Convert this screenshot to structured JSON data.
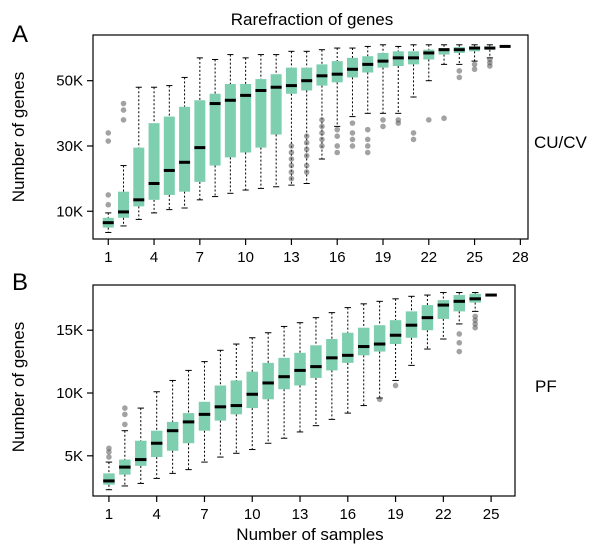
{
  "chart_data": [
    {
      "type": "boxplot",
      "panel_letter": "A",
      "title": "Rarefraction of genes",
      "group_label": "CU/CV",
      "xlabel": "",
      "ylabel": "Number of genes",
      "xlim": [
        0,
        28.5
      ],
      "ylim": [
        1500,
        64000
      ],
      "xticks": [
        1,
        4,
        7,
        10,
        13,
        16,
        19,
        22,
        25,
        28
      ],
      "yticks": [
        10000,
        30000,
        50000
      ],
      "yticklabels": [
        "10K",
        "30K",
        "50K"
      ],
      "grid": false,
      "boxes": [
        {
          "x": 1,
          "lo": 3500,
          "q1": 5000,
          "med": 6500,
          "q3": 8000,
          "hi": 9500,
          "outliers": [
            12000,
            15000,
            31500,
            34000
          ]
        },
        {
          "x": 2,
          "lo": 5500,
          "q1": 8000,
          "med": 9800,
          "q3": 16000,
          "hi": 24000,
          "outliers": [
            38000,
            41000,
            43000
          ]
        },
        {
          "x": 3,
          "lo": 7500,
          "q1": 11500,
          "med": 13500,
          "q3": 29500,
          "hi": 48000,
          "outliers": []
        },
        {
          "x": 4,
          "lo": 9500,
          "q1": 13500,
          "med": 18500,
          "q3": 37000,
          "hi": 48000,
          "outliers": []
        },
        {
          "x": 5,
          "lo": 10500,
          "q1": 15000,
          "med": 22500,
          "q3": 39000,
          "hi": 48500,
          "outliers": []
        },
        {
          "x": 6,
          "lo": 11000,
          "q1": 16000,
          "med": 25000,
          "q3": 42000,
          "hi": 51000,
          "outliers": []
        },
        {
          "x": 7,
          "lo": 13500,
          "q1": 19000,
          "med": 29500,
          "q3": 44000,
          "hi": 57000,
          "outliers": []
        },
        {
          "x": 8,
          "lo": 14500,
          "q1": 24000,
          "med": 43000,
          "q3": 46000,
          "hi": 56500,
          "outliers": []
        },
        {
          "x": 9,
          "lo": 15500,
          "q1": 26500,
          "med": 44000,
          "q3": 49000,
          "hi": 58000,
          "outliers": []
        },
        {
          "x": 10,
          "lo": 16500,
          "q1": 28000,
          "med": 45500,
          "q3": 49000,
          "hi": 57000,
          "outliers": []
        },
        {
          "x": 11,
          "lo": 17000,
          "q1": 29500,
          "med": 47000,
          "q3": 50500,
          "hi": 58000,
          "outliers": []
        },
        {
          "x": 12,
          "lo": 17500,
          "q1": 33500,
          "med": 48000,
          "q3": 52000,
          "hi": 58000,
          "outliers": []
        },
        {
          "x": 13,
          "lo": 18000,
          "q1": 46000,
          "med": 48500,
          "q3": 54000,
          "hi": 59000,
          "outliers": [
            20000,
            22000,
            24000,
            26000,
            28000,
            30000
          ]
        },
        {
          "x": 14,
          "lo": 18500,
          "q1": 47000,
          "med": 50000,
          "q3": 54000,
          "hi": 59000,
          "outliers": [
            22000,
            24000,
            27000,
            29000,
            31000,
            33000
          ]
        },
        {
          "x": 15,
          "lo": 26000,
          "q1": 48500,
          "med": 51500,
          "q3": 55000,
          "hi": 59500,
          "outliers": [
            30000,
            32000,
            34000,
            36000,
            38000
          ]
        },
        {
          "x": 16,
          "lo": 36000,
          "q1": 49500,
          "med": 52000,
          "q3": 56000,
          "hi": 60000,
          "outliers": [
            28000,
            30000,
            33000,
            35000
          ]
        },
        {
          "x": 17,
          "lo": 39000,
          "q1": 51000,
          "med": 53500,
          "q3": 57000,
          "hi": 60000,
          "outliers": [
            30000,
            32000,
            34000,
            37000
          ]
        },
        {
          "x": 18,
          "lo": 40000,
          "q1": 52500,
          "med": 55000,
          "q3": 57500,
          "hi": 60500,
          "outliers": [
            28000,
            30000,
            32000,
            35000
          ]
        },
        {
          "x": 19,
          "lo": 40000,
          "q1": 54000,
          "med": 56000,
          "q3": 58500,
          "hi": 61000,
          "outliers": [
            36000,
            38000
          ]
        },
        {
          "x": 20,
          "lo": 40000,
          "q1": 54500,
          "med": 57000,
          "q3": 59000,
          "hi": 60500,
          "outliers": [
            37000,
            38000
          ]
        },
        {
          "x": 21,
          "lo": 45000,
          "q1": 55000,
          "med": 57000,
          "q3": 59000,
          "hi": 61000,
          "outliers": [
            32000,
            34000
          ]
        },
        {
          "x": 22,
          "lo": 50000,
          "q1": 56500,
          "med": 58500,
          "q3": 59500,
          "hi": 61000,
          "outliers": [
            38000
          ]
        },
        {
          "x": 23,
          "lo": 55000,
          "q1": 58000,
          "med": 59500,
          "q3": 60000,
          "hi": 61000,
          "outliers": [
            38500
          ]
        },
        {
          "x": 24,
          "lo": 55000,
          "q1": 58500,
          "med": 59500,
          "q3": 60300,
          "hi": 61000,
          "outliers": [
            51000,
            53000
          ]
        },
        {
          "x": 25,
          "lo": 56000,
          "q1": 59000,
          "med": 60000,
          "q3": 60500,
          "hi": 61000,
          "outliers": [
            53500,
            55000
          ]
        },
        {
          "x": 26,
          "lo": 57000,
          "q1": 59500,
          "med": 60000,
          "q3": 60500,
          "hi": 61000,
          "outliers": [
            54500,
            55500,
            56500
          ]
        },
        {
          "x": 27,
          "lo": 60500,
          "q1": 60500,
          "med": 60500,
          "q3": 60500,
          "hi": 60500,
          "outliers": []
        }
      ]
    },
    {
      "type": "boxplot",
      "panel_letter": "B",
      "title": "",
      "group_label": "PF",
      "xlabel": "Number of samples",
      "ylabel": "Number of genes",
      "xlim": [
        0,
        26.5
      ],
      "ylim": [
        1800,
        18600
      ],
      "xticks": [
        1,
        4,
        7,
        10,
        13,
        16,
        19,
        22,
        25
      ],
      "yticks": [
        5000,
        10000,
        15000
      ],
      "yticklabels": [
        "5K",
        "10K",
        "15K"
      ],
      "grid": false,
      "boxes": [
        {
          "x": 1,
          "lo": 2300,
          "q1": 2700,
          "med": 3000,
          "q3": 3600,
          "hi": 4500,
          "outliers": [
            4900,
            5300,
            5600
          ]
        },
        {
          "x": 2,
          "lo": 2600,
          "q1": 3500,
          "med": 4100,
          "q3": 4700,
          "hi": 7000,
          "outliers": [
            7500,
            8300,
            8800
          ]
        },
        {
          "x": 3,
          "lo": 2800,
          "q1": 4200,
          "med": 4700,
          "q3": 6200,
          "hi": 8800,
          "outliers": []
        },
        {
          "x": 4,
          "lo": 3200,
          "q1": 4900,
          "med": 6000,
          "q3": 7000,
          "hi": 10100,
          "outliers": []
        },
        {
          "x": 5,
          "lo": 3600,
          "q1": 5400,
          "med": 7000,
          "q3": 7700,
          "hi": 11000,
          "outliers": []
        },
        {
          "x": 6,
          "lo": 3900,
          "q1": 6000,
          "med": 7700,
          "q3": 8400,
          "hi": 11800,
          "outliers": []
        },
        {
          "x": 7,
          "lo": 4500,
          "q1": 7000,
          "med": 8300,
          "q3": 9300,
          "hi": 12500,
          "outliers": []
        },
        {
          "x": 8,
          "lo": 4900,
          "q1": 7800,
          "med": 8900,
          "q3": 10600,
          "hi": 13400,
          "outliers": []
        },
        {
          "x": 9,
          "lo": 5200,
          "q1": 8300,
          "med": 9000,
          "q3": 11000,
          "hi": 13900,
          "outliers": []
        },
        {
          "x": 10,
          "lo": 5500,
          "q1": 8800,
          "med": 9900,
          "q3": 11700,
          "hi": 14400,
          "outliers": []
        },
        {
          "x": 11,
          "lo": 6000,
          "q1": 9500,
          "med": 10800,
          "q3": 12400,
          "hi": 14800,
          "outliers": []
        },
        {
          "x": 12,
          "lo": 6400,
          "q1": 10300,
          "med": 11300,
          "q3": 12800,
          "hi": 15300,
          "outliers": []
        },
        {
          "x": 13,
          "lo": 6900,
          "q1": 10600,
          "med": 11800,
          "q3": 13200,
          "hi": 15600,
          "outliers": []
        },
        {
          "x": 14,
          "lo": 7400,
          "q1": 11200,
          "med": 12100,
          "q3": 13800,
          "hi": 16000,
          "outliers": []
        },
        {
          "x": 15,
          "lo": 7900,
          "q1": 11800,
          "med": 12800,
          "q3": 14300,
          "hi": 16400,
          "outliers": []
        },
        {
          "x": 16,
          "lo": 8400,
          "q1": 12400,
          "med": 13000,
          "q3": 14800,
          "hi": 16800,
          "outliers": []
        },
        {
          "x": 17,
          "lo": 9000,
          "q1": 13000,
          "med": 13700,
          "q3": 15200,
          "hi": 17100,
          "outliers": []
        },
        {
          "x": 18,
          "lo": 9600,
          "q1": 13300,
          "med": 13900,
          "q3": 15400,
          "hi": 17300,
          "outliers": [
            9500
          ]
        },
        {
          "x": 19,
          "lo": 11000,
          "q1": 13900,
          "med": 14600,
          "q3": 15800,
          "hi": 17500,
          "outliers": [
            10600
          ]
        },
        {
          "x": 20,
          "lo": 12200,
          "q1": 14400,
          "med": 15400,
          "q3": 16500,
          "hi": 17700,
          "outliers": []
        },
        {
          "x": 21,
          "lo": 13500,
          "q1": 15000,
          "med": 16000,
          "q3": 17000,
          "hi": 17800,
          "outliers": []
        },
        {
          "x": 22,
          "lo": 14300,
          "q1": 15900,
          "med": 17000,
          "q3": 17400,
          "hi": 18000,
          "outliers": []
        },
        {
          "x": 23,
          "lo": 15500,
          "q1": 16500,
          "med": 17300,
          "q3": 17800,
          "hi": 18000,
          "outliers": [
            13300,
            14000,
            14700
          ]
        },
        {
          "x": 24,
          "lo": 16500,
          "q1": 17200,
          "med": 17500,
          "q3": 17900,
          "hi": 18000,
          "outliers": [
            15200,
            15500,
            15800,
            16100
          ]
        },
        {
          "x": 25,
          "lo": 17800,
          "q1": 17800,
          "med": 17800,
          "q3": 17800,
          "hi": 17800,
          "outliers": []
        }
      ]
    }
  ]
}
